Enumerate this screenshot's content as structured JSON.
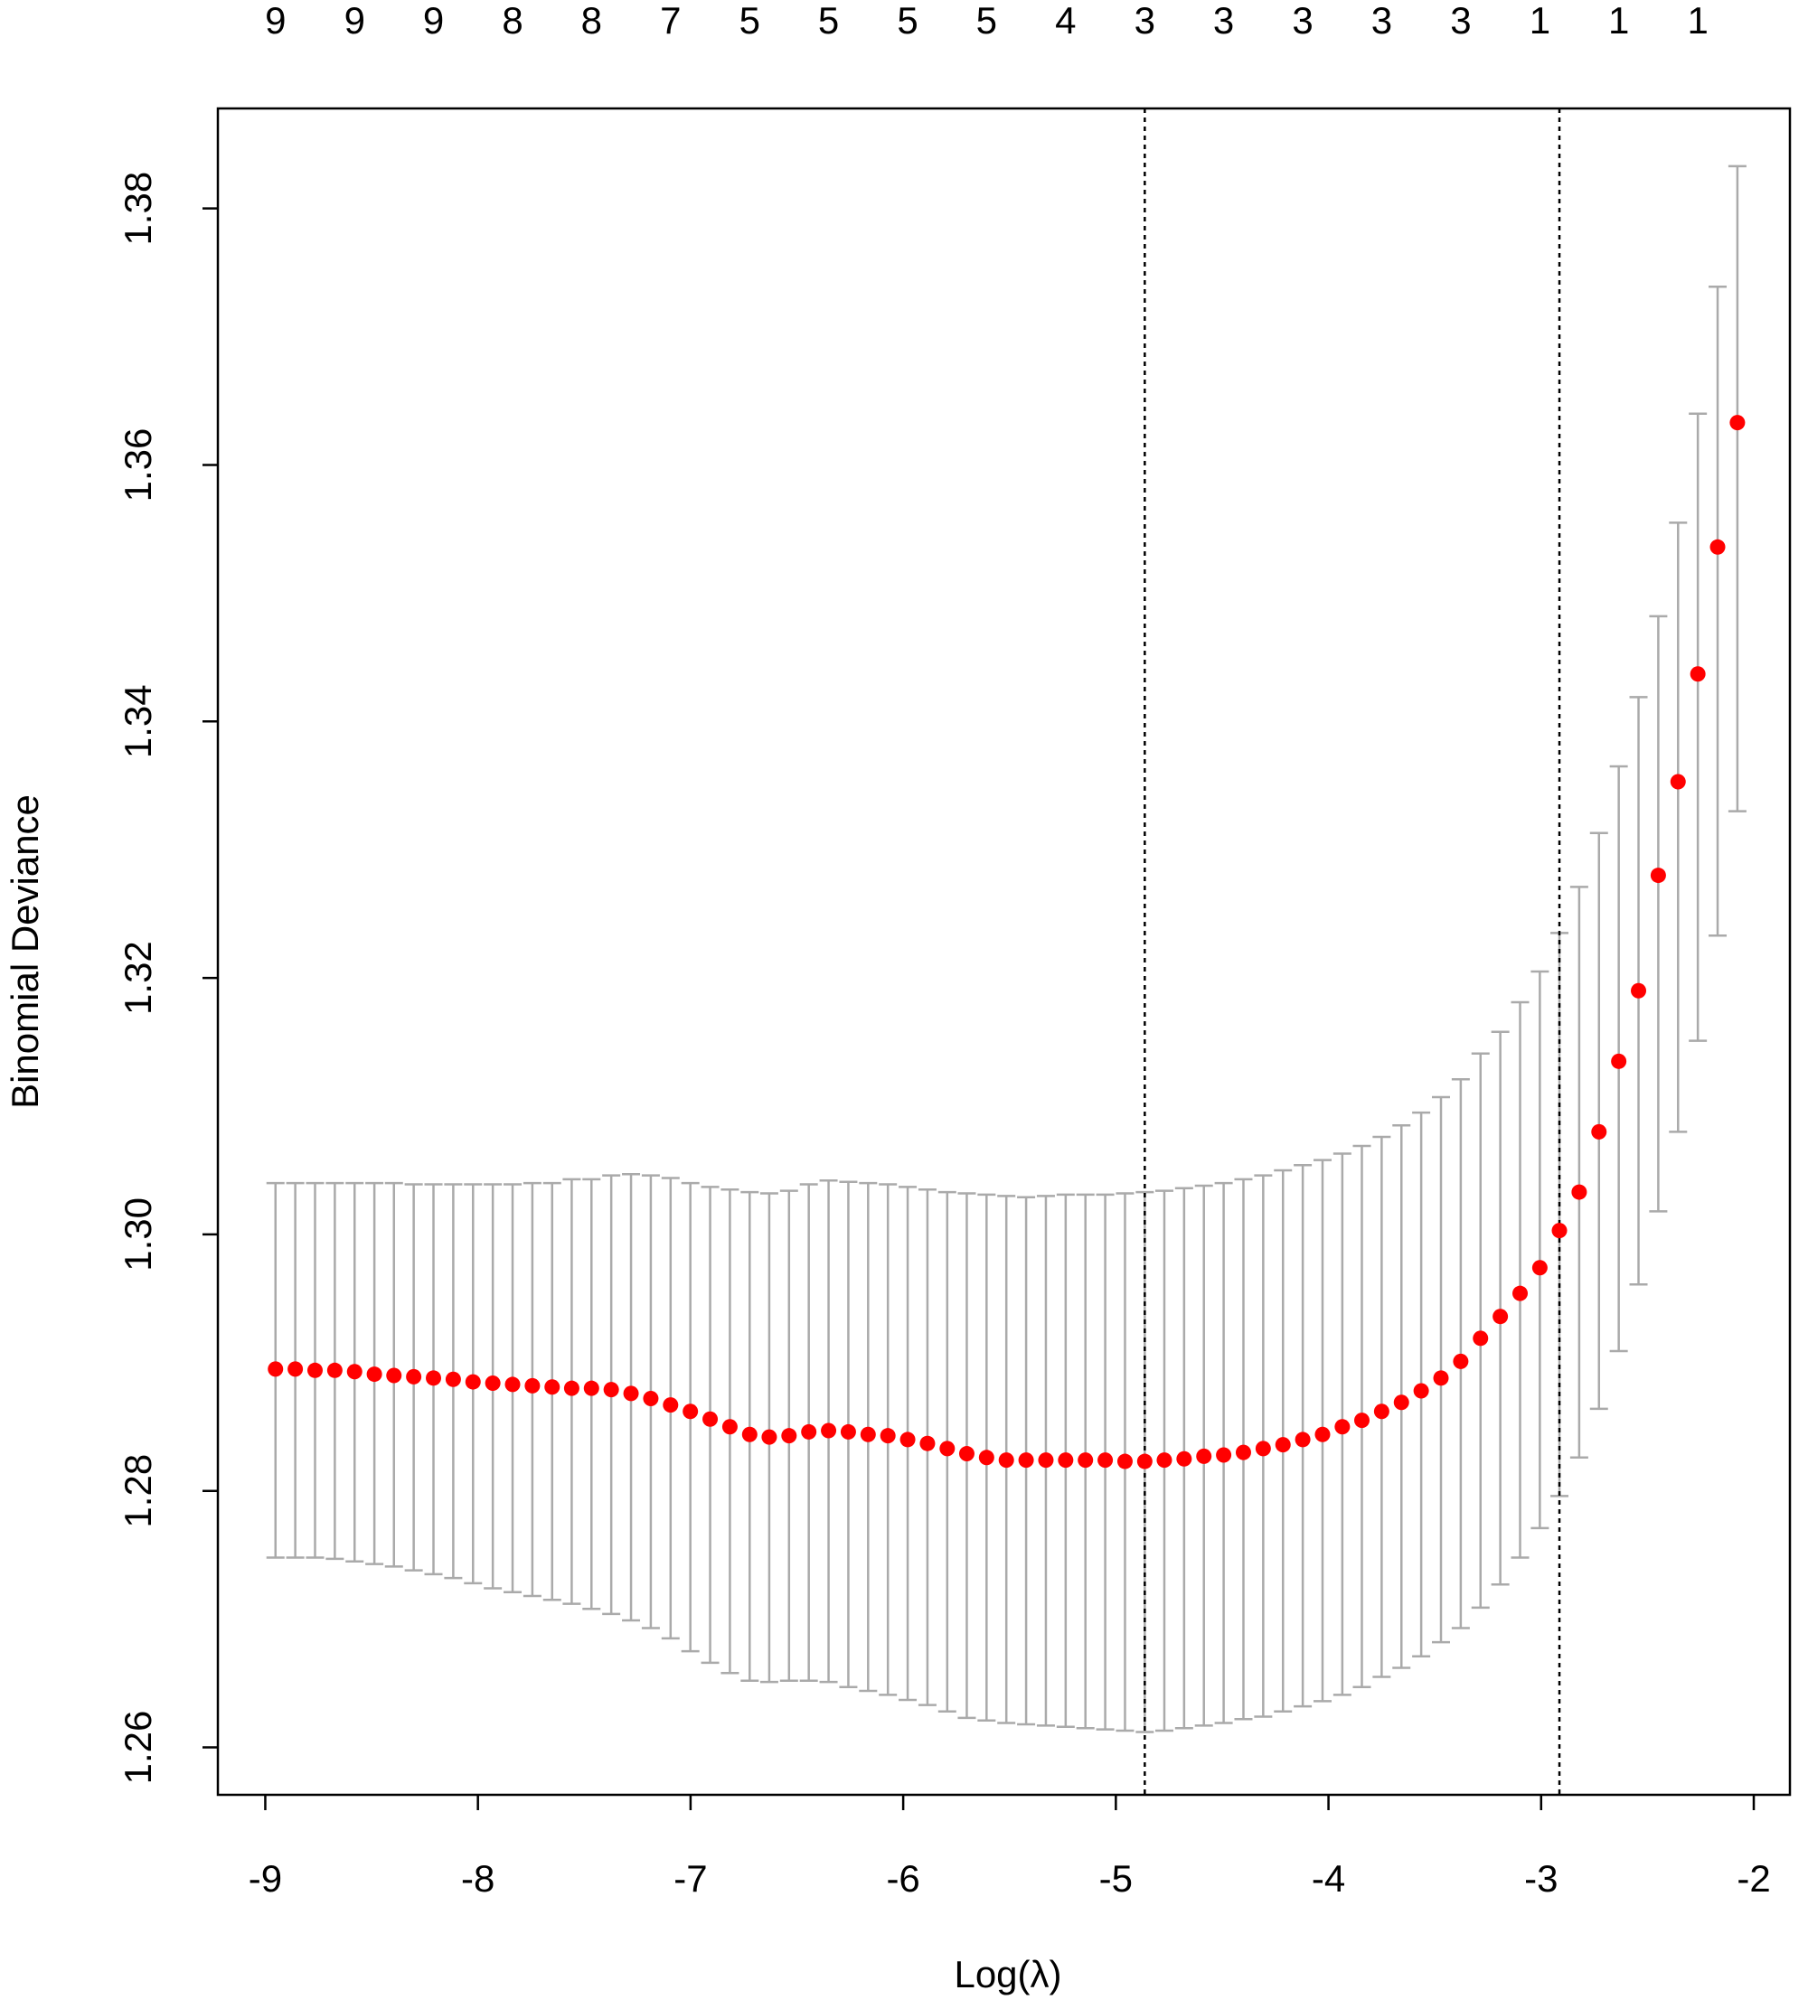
{
  "chart_data": {
    "type": "scatter",
    "xlabel": "Log(λ)",
    "ylabel": "Binomial Deviance",
    "xlim": [
      -9.223,
      -1.83
    ],
    "ylim": [
      1.2563,
      1.3878
    ],
    "xticks": [
      -9,
      -8,
      -7,
      -6,
      -5,
      -4,
      -3,
      -2
    ],
    "yticks": [
      1.26,
      1.28,
      {
        "value": 1.3,
        "label": "1.30"
      },
      1.32,
      1.34,
      1.36,
      1.38
    ],
    "top_ticks": [
      {
        "value": -8.952,
        "label": "9"
      },
      {
        "value": -8.58,
        "label": "9"
      },
      {
        "value": -8.209,
        "label": "9"
      },
      {
        "value": -7.837,
        "label": "8"
      },
      {
        "value": -7.466,
        "label": "8"
      },
      {
        "value": -7.094,
        "label": "7"
      },
      {
        "value": -6.722,
        "label": "5"
      },
      {
        "value": -6.351,
        "label": "5"
      },
      {
        "value": -5.979,
        "label": "5"
      },
      {
        "value": -5.608,
        "label": "5"
      },
      {
        "value": -5.236,
        "label": "4"
      },
      {
        "value": -4.864,
        "label": "3"
      },
      {
        "value": -4.493,
        "label": "3"
      },
      {
        "value": -4.121,
        "label": "3"
      },
      {
        "value": -3.75,
        "label": "3"
      },
      {
        "value": -3.378,
        "label": "3"
      },
      {
        "value": -3.006,
        "label": "1"
      },
      {
        "value": -2.635,
        "label": "1"
      },
      {
        "value": -2.263,
        "label": "1"
      }
    ],
    "vlines": [
      -4.864,
      -2.914
    ],
    "x": [
      -8.952,
      -8.859,
      -8.766,
      -8.673,
      -8.58,
      -8.487,
      -8.395,
      -8.302,
      -8.209,
      -8.116,
      -8.023,
      -7.93,
      -7.837,
      -7.744,
      -7.651,
      -7.559,
      -7.466,
      -7.373,
      -7.28,
      -7.187,
      -7.094,
      -7.001,
      -6.908,
      -6.815,
      -6.722,
      -6.63,
      -6.537,
      -6.444,
      -6.351,
      -6.258,
      -6.165,
      -6.072,
      -5.979,
      -5.886,
      -5.793,
      -5.701,
      -5.608,
      -5.515,
      -5.422,
      -5.329,
      -5.236,
      -5.143,
      -5.05,
      -4.957,
      -4.864,
      -4.772,
      -4.679,
      -4.586,
      -4.493,
      -4.4,
      -4.307,
      -4.214,
      -4.121,
      -4.028,
      -3.935,
      -3.843,
      -3.75,
      -3.657,
      -3.564,
      -3.471,
      -3.378,
      -3.285,
      -3.192,
      -3.099,
      -3.006,
      -2.914,
      -2.821,
      -2.728,
      -2.635,
      -2.542,
      -2.449,
      -2.356,
      -2.263,
      -2.17,
      -2.077
    ],
    "series": [
      {
        "color": "#ff0000",
        "error_color": "#aaaaaa",
        "values": [
          1.2895,
          1.2895,
          1.2894,
          1.2894,
          1.2893,
          1.2891,
          1.289,
          1.2889,
          1.2888,
          1.2887,
          1.2885,
          1.2884,
          1.2883,
          1.2882,
          1.2881,
          1.288,
          1.288,
          1.2879,
          1.2876,
          1.2872,
          1.2867,
          1.2862,
          1.2856,
          1.285,
          1.2844,
          1.2842,
          1.2843,
          1.2846,
          1.2847,
          1.2846,
          1.2844,
          1.2843,
          1.284,
          1.2837,
          1.2833,
          1.2829,
          1.2826,
          1.2824,
          1.2824,
          1.2824,
          1.2824,
          1.2824,
          1.2824,
          1.2823,
          1.2823,
          1.2824,
          1.2825,
          1.2827,
          1.2828,
          1.283,
          1.2833,
          1.2836,
          1.284,
          1.2844,
          1.285,
          1.2855,
          1.2862,
          1.2869,
          1.2878,
          1.2888,
          1.2901,
          1.2919,
          1.2936,
          1.2954,
          1.2974,
          1.3003,
          1.3033,
          1.308,
          1.3135,
          1.319,
          1.328,
          1.3353,
          1.3437,
          1.3536,
          1.3633
        ],
        "upper": [
          1.304,
          1.304,
          1.304,
          1.304,
          1.304,
          1.304,
          1.304,
          1.3039,
          1.3039,
          1.3039,
          1.3039,
          1.3039,
          1.3039,
          1.304,
          1.304,
          1.3043,
          1.3043,
          1.3046,
          1.3047,
          1.3046,
          1.3044,
          1.304,
          1.3037,
          1.3035,
          1.3033,
          1.3032,
          1.3034,
          1.3039,
          1.3042,
          1.3041,
          1.304,
          1.3039,
          1.3037,
          1.3035,
          1.3033,
          1.3032,
          1.3031,
          1.303,
          1.3029,
          1.303,
          1.3031,
          1.3031,
          1.3031,
          1.3032,
          1.3033,
          1.3034,
          1.3036,
          1.3038,
          1.304,
          1.3043,
          1.3046,
          1.305,
          1.3054,
          1.3058,
          1.3063,
          1.3069,
          1.3076,
          1.3085,
          1.3095,
          1.3107,
          1.3121,
          1.3141,
          1.3158,
          1.3181,
          1.3205,
          1.3235,
          1.3271,
          1.3313,
          1.3365,
          1.3419,
          1.3482,
          1.3555,
          1.364,
          1.3739,
          1.3833
        ],
        "lower": [
          1.2748,
          1.2748,
          1.2748,
          1.2747,
          1.2745,
          1.2743,
          1.2741,
          1.2738,
          1.2735,
          1.2732,
          1.2728,
          1.2724,
          1.2721,
          1.2718,
          1.2715,
          1.2712,
          1.2708,
          1.2704,
          1.2699,
          1.2693,
          1.2685,
          1.2675,
          1.2666,
          1.2658,
          1.2652,
          1.2651,
          1.2652,
          1.2652,
          1.2651,
          1.2647,
          1.2644,
          1.2641,
          1.2637,
          1.2633,
          1.2628,
          1.2623,
          1.2621,
          1.2619,
          1.2618,
          1.2617,
          1.2616,
          1.2615,
          1.2614,
          1.2613,
          1.2612,
          1.2613,
          1.2615,
          1.2617,
          1.2619,
          1.2622,
          1.2624,
          1.2628,
          1.2632,
          1.2636,
          1.2641,
          1.2647,
          1.2655,
          1.2662,
          1.2671,
          1.2682,
          1.2693,
          1.2709,
          1.2727,
          1.2748,
          1.2771,
          1.2796,
          1.2826,
          1.2864,
          1.2909,
          1.2961,
          1.3018,
          1.308,
          1.3151,
          1.3233,
          1.333
        ]
      }
    ]
  }
}
